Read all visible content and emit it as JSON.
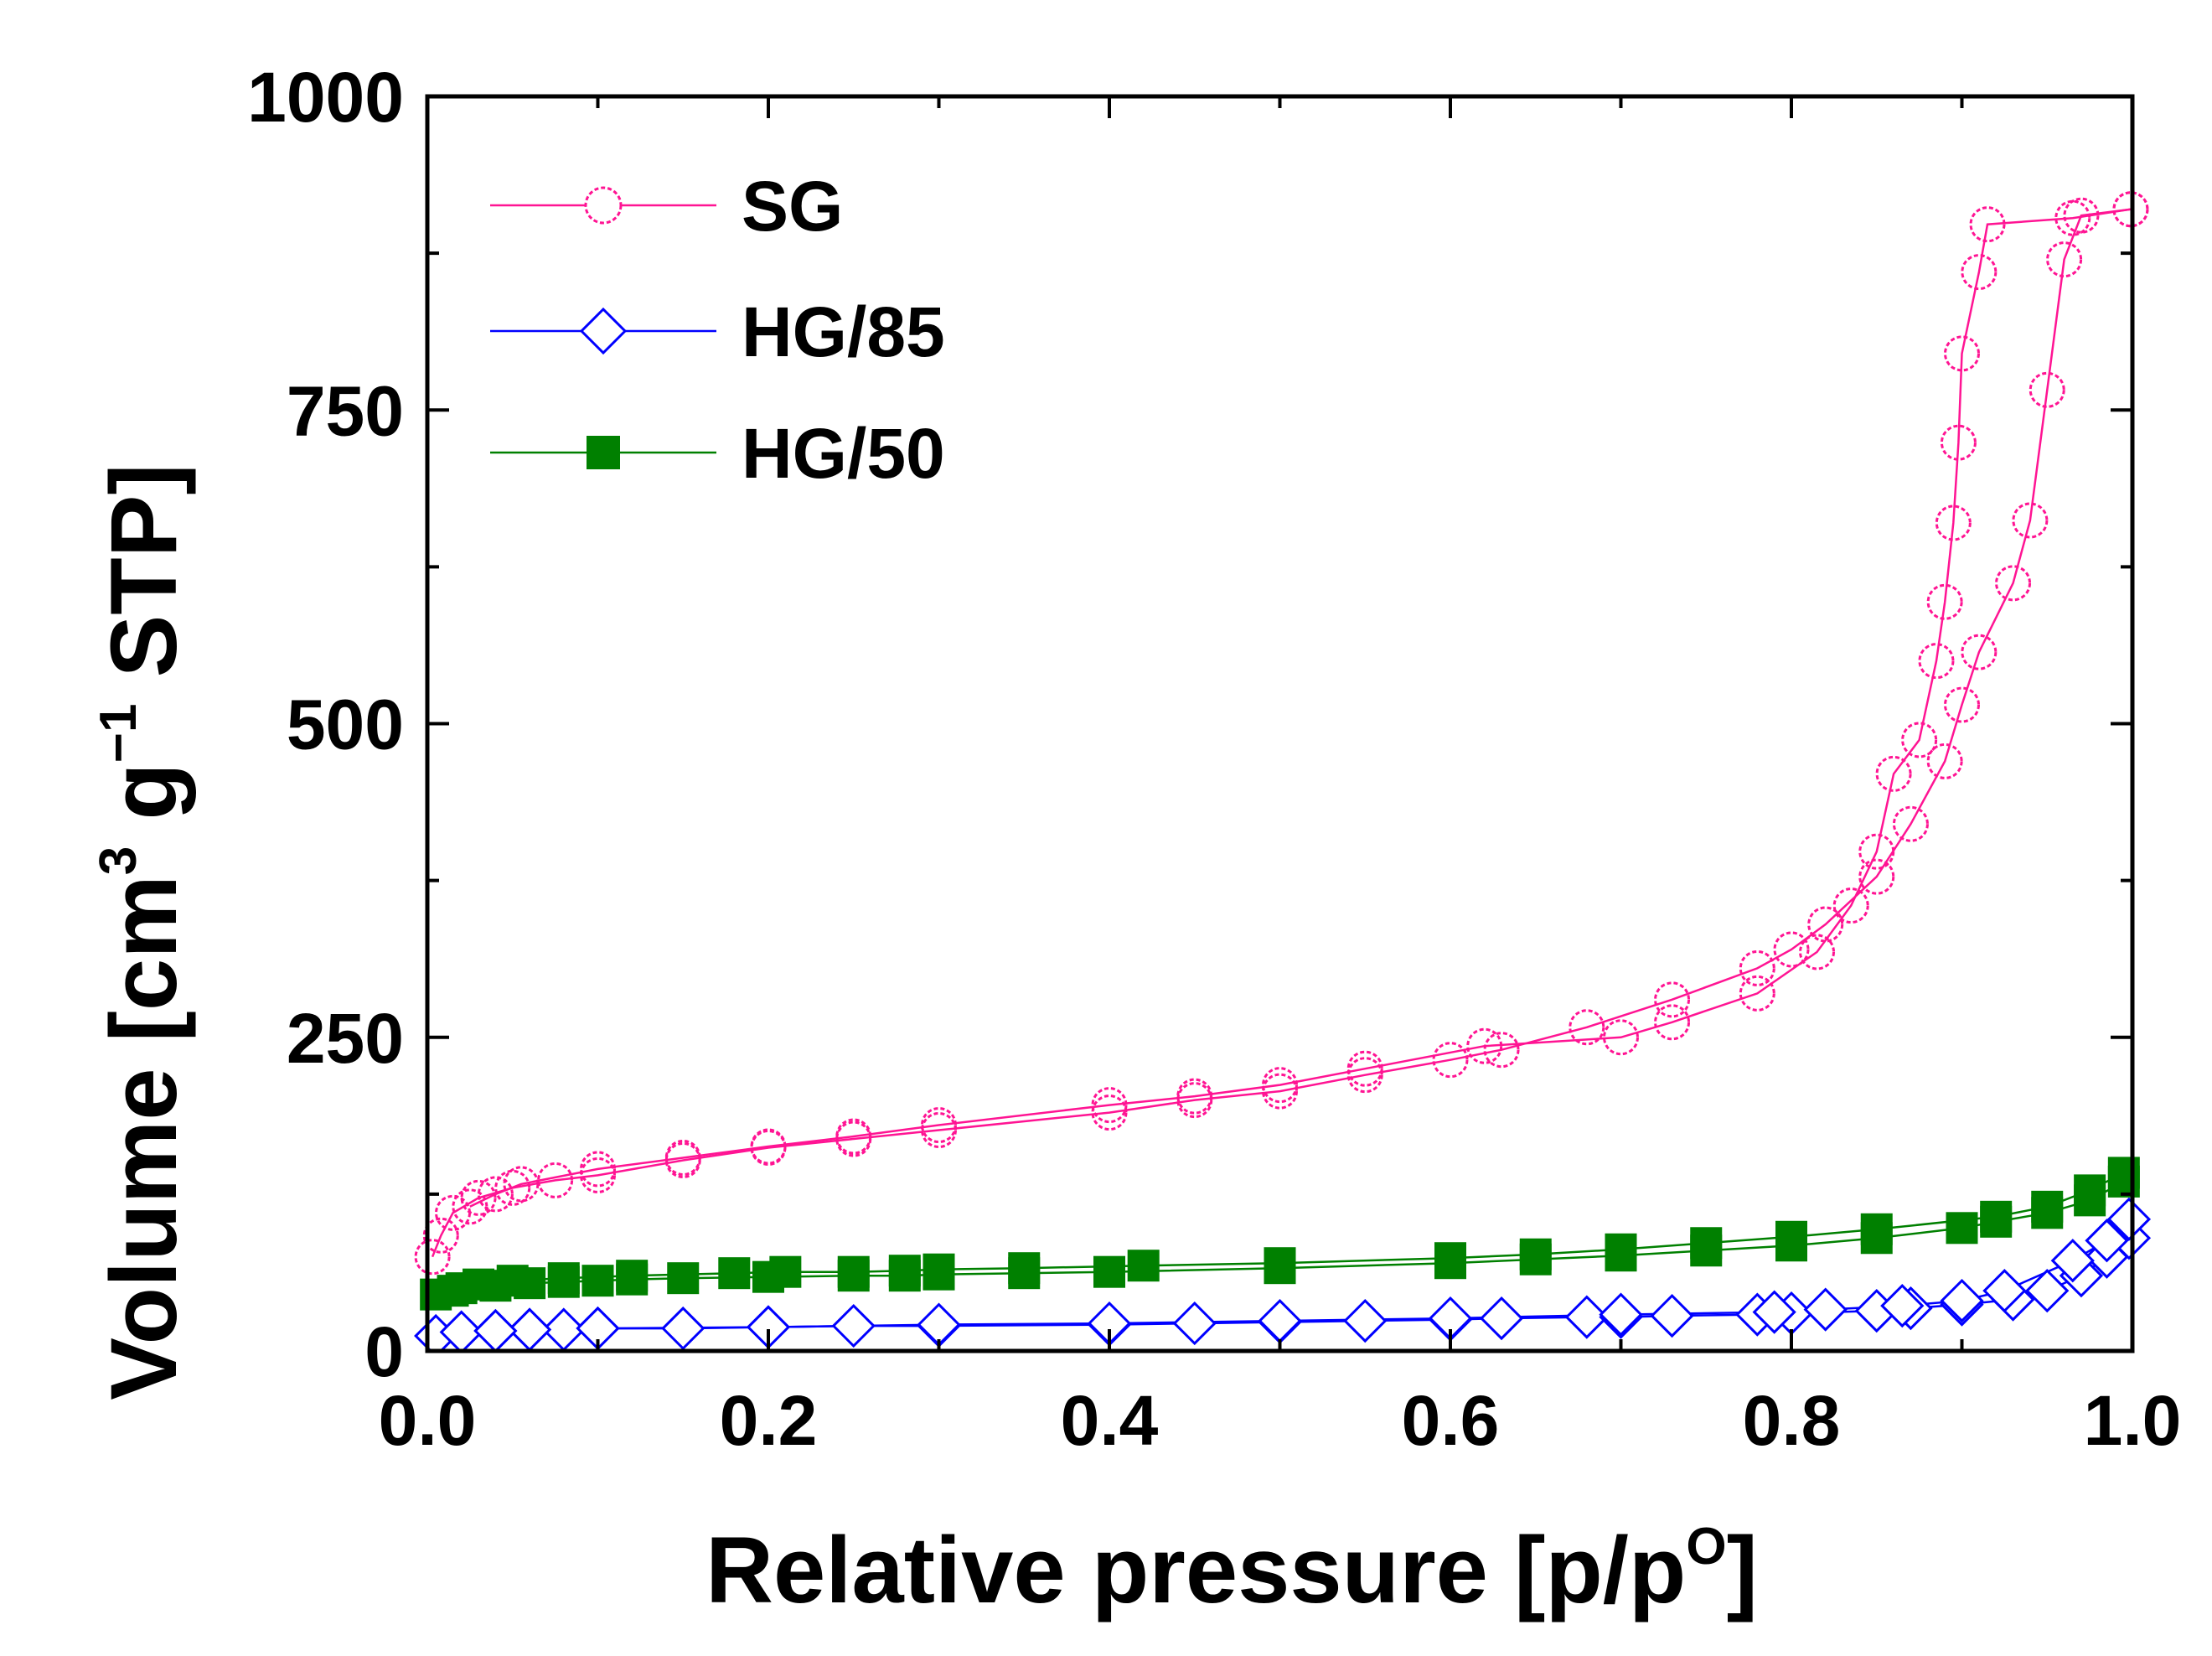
{
  "chart_data": {
    "type": "line",
    "title": "",
    "xlabel": "Relative pressure [p/p",
    "xlabel_sup": "O",
    "xlabel_end": "]",
    "ylabel": "Volume [cm",
    "ylabel_sup1": "3",
    "ylabel_mid": " g",
    "ylabel_sup2": "−1",
    "ylabel_end": " STP]",
    "xlim": [
      0.0,
      1.0
    ],
    "ylim": [
      0,
      1000
    ],
    "xticks": [
      "0.0",
      "0.2",
      "0.4",
      "0.6",
      "0.8",
      "1.0"
    ],
    "yticks": [
      "0",
      "250",
      "500",
      "750",
      "1000"
    ],
    "legend_position": "top-left",
    "series": [
      {
        "name": "SG",
        "color": "#ff1493",
        "marker": "circle-open-dotted",
        "adsorption": {
          "x": [
            0.003,
            0.008,
            0.015,
            0.03,
            0.05,
            0.075,
            0.1,
            0.15,
            0.2,
            0.25,
            0.3,
            0.4,
            0.45,
            0.5,
            0.55,
            0.6,
            0.63,
            0.68,
            0.73,
            0.78,
            0.8,
            0.82,
            0.85,
            0.87,
            0.89,
            0.9,
            0.91,
            0.93,
            0.94,
            0.95,
            0.96,
            0.97,
            0.999
          ],
          "y": [
            75,
            92,
            110,
            122,
            130,
            136,
            140,
            152,
            162,
            169,
            176,
            190,
            200,
            207,
            220,
            232,
            240,
            258,
            280,
            305,
            320,
            340,
            378,
            420,
            470,
            515,
            557,
            612,
            662,
            766,
            870,
            905,
            910
          ]
        },
        "desorption": {
          "x": [
            0.999,
            0.965,
            0.915,
            0.91,
            0.9,
            0.898,
            0.895,
            0.89,
            0.885,
            0.875,
            0.86,
            0.85,
            0.835,
            0.815,
            0.78,
            0.73,
            0.7,
            0.62,
            0.55,
            0.5,
            0.45,
            0.4,
            0.3,
            0.25,
            0.2,
            0.15,
            0.1,
            0.055,
            0.04,
            0.025
          ],
          "y": [
            910,
            903,
            898,
            860,
            795,
            724,
            660,
            597,
            550,
            487,
            460,
            398,
            355,
            318,
            285,
            262,
            250,
            243,
            225,
            212,
            203,
            196,
            180,
            171,
            163,
            154,
            145,
            133,
            125,
            115
          ]
        }
      },
      {
        "name": "HG/85",
        "color": "#0000ff",
        "marker": "diamond-open",
        "adsorption": {
          "x": [
            0.005,
            0.02,
            0.04,
            0.06,
            0.08,
            0.1,
            0.15,
            0.2,
            0.25,
            0.3,
            0.4,
            0.45,
            0.5,
            0.55,
            0.6,
            0.63,
            0.68,
            0.7,
            0.73,
            0.78,
            0.8,
            0.85,
            0.87,
            0.9,
            0.93,
            0.95,
            0.97,
            0.985,
            0.998
          ],
          "y": [
            12,
            15,
            16,
            17,
            17,
            18,
            18,
            19,
            20,
            20,
            21,
            22,
            23,
            24,
            25,
            26,
            27,
            27,
            28,
            29,
            30,
            32,
            34,
            37,
            41,
            48,
            60,
            75,
            90
          ]
        },
        "desorption": {
          "x": [
            0.998,
            0.985,
            0.965,
            0.925,
            0.9,
            0.865,
            0.82,
            0.79,
            0.7,
            0.6,
            0.5,
            0.4,
            0.3,
            0.2,
            0.1,
            0.06,
            0.04
          ],
          "y": [
            105,
            88,
            72,
            48,
            40,
            36,
            33,
            31,
            29,
            26,
            24,
            22,
            21,
            19,
            18,
            17,
            16
          ]
        }
      },
      {
        "name": "HG/50",
        "color": "#008000",
        "marker": "square-filled",
        "adsorption": {
          "x": [
            0.005,
            0.02,
            0.04,
            0.06,
            0.08,
            0.1,
            0.12,
            0.15,
            0.2,
            0.25,
            0.28,
            0.3,
            0.35,
            0.4,
            0.5,
            0.6,
            0.65,
            0.7,
            0.75,
            0.8,
            0.85,
            0.9,
            0.92,
            0.95,
            0.975,
            0.995
          ],
          "y": [
            45,
            50,
            52,
            54,
            55,
            56,
            57,
            58,
            59,
            60,
            60,
            61,
            62,
            63,
            66,
            70,
            73,
            76,
            80,
            84,
            90,
            98,
            103,
            110,
            120,
            135
          ]
        },
        "desorption": {
          "x": [
            0.995,
            0.975,
            0.95,
            0.92,
            0.85,
            0.8,
            0.75,
            0.7,
            0.65,
            0.6,
            0.5,
            0.42,
            0.35,
            0.3,
            0.28,
            0.25,
            0.21,
            0.18,
            0.12,
            0.08,
            0.05,
            0.03,
            0.015
          ],
          "y": [
            142,
            128,
            115,
            107,
            97,
            91,
            86,
            81,
            77,
            74,
            70,
            68,
            66,
            65,
            64,
            63,
            63,
            62,
            60,
            58,
            56,
            53,
            48
          ]
        }
      }
    ]
  }
}
